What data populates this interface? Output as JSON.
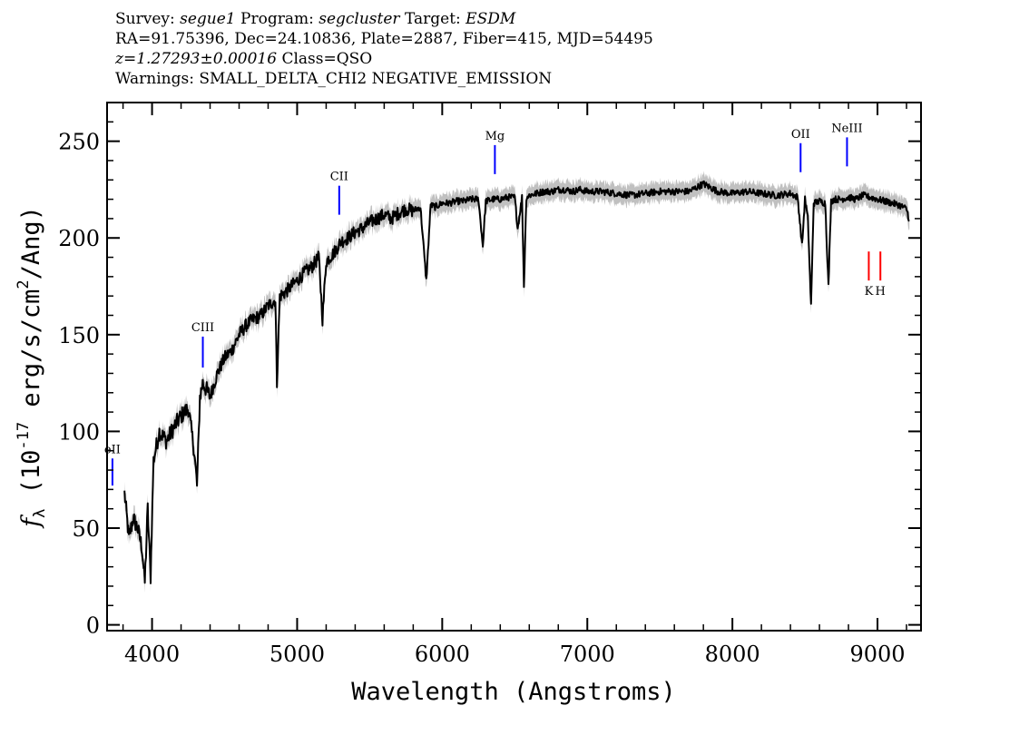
{
  "header": {
    "line1": {
      "survey_label": "Survey:",
      "survey": "segue1",
      "program_label": "Program:",
      "program": "segcluster",
      "target_label": "Target:",
      "target": "ESDM"
    },
    "line2": "RA=91.75396, Dec=24.10836, Plate=2887, Fiber=415, MJD=54495",
    "line3": {
      "redshift": "z=1.27293±0.00016",
      "class_text": "Class=QSO"
    },
    "line4": "Warnings: SMALL_DELTA_CHI2 NEGATIVE_EMISSION"
  },
  "chart_data": {
    "type": "line",
    "xlabel": "Wavelength (Angstroms)",
    "ylabel": "f_λ (10^-17 erg/s/cm^2/Ang)",
    "xlim": [
      3690,
      9300
    ],
    "ylim": [
      -3,
      270
    ],
    "x_ticks": [
      4000,
      5000,
      6000,
      7000,
      8000,
      9000
    ],
    "y_ticks": [
      0,
      50,
      100,
      150,
      200,
      250
    ],
    "series": [
      {
        "color": "#000000",
        "error_band_color": "#c0c0c0",
        "x": [
          3810,
          3840,
          3870,
          3900,
          3930,
          3950,
          3970,
          3990,
          4010,
          4050,
          4100,
          4150,
          4200,
          4250,
          4290,
          4310,
          4330,
          4350,
          4400,
          4450,
          4500,
          4550,
          4600,
          4650,
          4700,
          4750,
          4800,
          4850,
          4861,
          4880,
          4920,
          4960,
          5000,
          5050,
          5100,
          5150,
          5175,
          5200,
          5250,
          5300,
          5350,
          5400,
          5450,
          5500,
          5550,
          5600,
          5650,
          5700,
          5750,
          5800,
          5850,
          5890,
          5920,
          5950,
          6000,
          6050,
          6100,
          6150,
          6200,
          6250,
          6280,
          6300,
          6350,
          6400,
          6450,
          6500,
          6520,
          6550,
          6563,
          6580,
          6600,
          6650,
          6700,
          6750,
          6800,
          6850,
          6900,
          6950,
          7000,
          7100,
          7200,
          7300,
          7400,
          7500,
          7600,
          7700,
          7800,
          7850,
          7900,
          8000,
          8100,
          8200,
          8300,
          8400,
          8450,
          8480,
          8500,
          8520,
          8542,
          8560,
          8600,
          8640,
          8662,
          8680,
          8700,
          8750,
          8800,
          8850,
          8900,
          8950,
          9000,
          9050,
          9100,
          9150,
          9200,
          9220
        ],
        "y": [
          68,
          45,
          55,
          50,
          40,
          22,
          60,
          25,
          85,
          100,
          95,
          102,
          108,
          112,
          90,
          72,
          118,
          125,
          118,
          130,
          138,
          142,
          150,
          155,
          158,
          160,
          165,
          168,
          125,
          170,
          172,
          175,
          178,
          182,
          185,
          190,
          158,
          188,
          192,
          198,
          200,
          203,
          205,
          208,
          210,
          212,
          210,
          213,
          215,
          214,
          216,
          178,
          217,
          216,
          218,
          218,
          219,
          219,
          220,
          220,
          196,
          219,
          220,
          220,
          221,
          221,
          205,
          221,
          175,
          221,
          222,
          223,
          224,
          224,
          225,
          225,
          224,
          225,
          224,
          224,
          223,
          222,
          223,
          224,
          224,
          224,
          228,
          226,
          224,
          223,
          224,
          223,
          222,
          223,
          221,
          196,
          220,
          210,
          165,
          218,
          219,
          218,
          175,
          219,
          220,
          220,
          221,
          220,
          222,
          221,
          220,
          219,
          218,
          217,
          215,
          209
        ]
      }
    ],
    "line_markers": [
      {
        "label": "eII",
        "x": 3727,
        "y_bottom": 72,
        "y_top": 86,
        "color": "#0000ff"
      },
      {
        "label": "CIII",
        "x": 4350,
        "y_bottom": 133,
        "y_top": 149,
        "color": "#0000ff"
      },
      {
        "label": "CII",
        "x": 5290,
        "y_bottom": 212,
        "y_top": 227,
        "color": "#0000ff"
      },
      {
        "label": "Mg",
        "x": 6363,
        "y_bottom": 233,
        "y_top": 248,
        "color": "#0000ff"
      },
      {
        "label": "OII",
        "x": 8470,
        "y_bottom": 234,
        "y_top": 249,
        "color": "#0000ff"
      },
      {
        "label": "NeIII",
        "x": 8790,
        "y_bottom": 237,
        "y_top": 252,
        "color": "#0000ff"
      },
      {
        "label": "K",
        "x": 8940,
        "y_bottom": 178,
        "y_top": 193,
        "color": "#ff0000"
      },
      {
        "label": "H",
        "x": 9020,
        "y_bottom": 178,
        "y_top": 193,
        "color": "#ff0000"
      }
    ]
  }
}
